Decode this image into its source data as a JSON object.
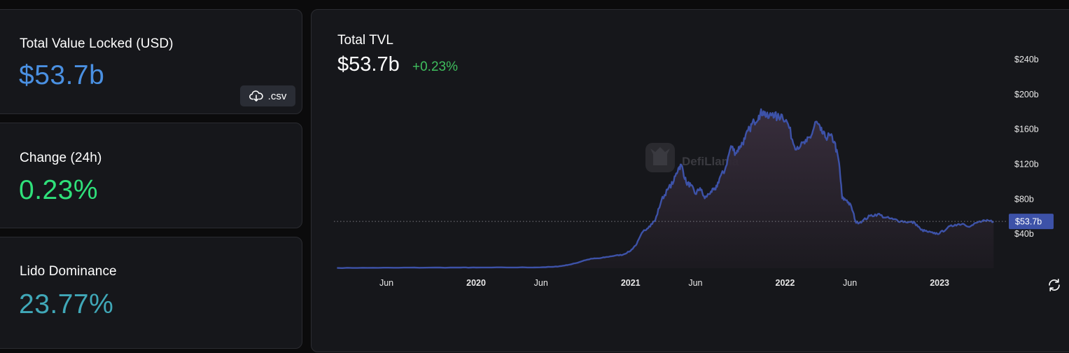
{
  "stats": {
    "tvl": {
      "label": "Total Value Locked (USD)",
      "value": "$53.7b",
      "value_color": "#4a90e2"
    },
    "change": {
      "label": "Change (24h)",
      "value": "0.23%",
      "value_color": "#2fe07a"
    },
    "dominance": {
      "label": "Lido Dominance",
      "value": "23.77%",
      "value_color": "#40a8b8"
    },
    "csv_button": {
      "label": ".csv",
      "icon": "cloud-download-icon"
    }
  },
  "chart": {
    "title": "Total TVL",
    "value": "$53.7b",
    "change": "+0.23%",
    "watermark": "DefiLlama",
    "current_price_label": "$53.7b",
    "refresh_icon": "refresh-icon",
    "colors": {
      "line": "#3d52a8",
      "area_top": "#3a2f3e",
      "price_tag": "#3d52a8",
      "up": "#3fbf5e"
    }
  },
  "chart_data": {
    "type": "area",
    "title": "Total TVL",
    "xlabel": "",
    "ylabel": "",
    "ylim": [
      0,
      260
    ],
    "y_ticks": [
      "$40b",
      "$80b",
      "$120b",
      "$160b",
      "$200b",
      "$240b"
    ],
    "x_ticks": [
      "Jun",
      "2020",
      "Jun",
      "2021",
      "Jun",
      "2022",
      "Jun",
      "2023"
    ],
    "current_value": 53.7,
    "series": [
      {
        "values": [
          [
            2019.1,
            0.3
          ],
          [
            2019.3,
            0.5
          ],
          [
            2019.5,
            0.6
          ],
          [
            2019.7,
            0.7
          ],
          [
            2019.9,
            0.8
          ],
          [
            2020.0,
            0.8
          ],
          [
            2020.2,
            0.9
          ],
          [
            2020.4,
            1.0
          ],
          [
            2020.5,
            1.6
          ],
          [
            2020.55,
            2.5
          ],
          [
            2020.6,
            4.0
          ],
          [
            2020.65,
            6.0
          ],
          [
            2020.7,
            9.0
          ],
          [
            2020.75,
            11.0
          ],
          [
            2020.8,
            11.5
          ],
          [
            2020.85,
            13.0
          ],
          [
            2020.9,
            14.5
          ],
          [
            2020.95,
            15.5
          ],
          [
            2021.0,
            20.0
          ],
          [
            2021.04,
            28.0
          ],
          [
            2021.08,
            42.0
          ],
          [
            2021.12,
            48.0
          ],
          [
            2021.16,
            55.0
          ],
          [
            2021.2,
            78.0
          ],
          [
            2021.24,
            90.0
          ],
          [
            2021.28,
            100.0
          ],
          [
            2021.31,
            115.0
          ],
          [
            2021.33,
            118.0
          ],
          [
            2021.36,
            98.0
          ],
          [
            2021.39,
            95.0
          ],
          [
            2021.42,
            85.0
          ],
          [
            2021.45,
            92.0
          ],
          [
            2021.48,
            80.0
          ],
          [
            2021.52,
            88.0
          ],
          [
            2021.55,
            90.0
          ],
          [
            2021.58,
            105.0
          ],
          [
            2021.61,
            112.0
          ],
          [
            2021.65,
            140.0
          ],
          [
            2021.68,
            132.0
          ],
          [
            2021.71,
            140.0
          ],
          [
            2021.74,
            148.0
          ],
          [
            2021.77,
            160.0
          ],
          [
            2021.8,
            168.0
          ],
          [
            2021.83,
            175.0
          ],
          [
            2021.86,
            180.0
          ],
          [
            2021.89,
            172.0
          ],
          [
            2021.92,
            178.0
          ],
          [
            2021.95,
            172.0
          ],
          [
            2021.98,
            176.0
          ],
          [
            2022.02,
            165.0
          ],
          [
            2022.06,
            140.0
          ],
          [
            2022.1,
            140.0
          ],
          [
            2022.14,
            145.0
          ],
          [
            2022.17,
            152.0
          ],
          [
            2022.2,
            168.0
          ],
          [
            2022.23,
            158.0
          ],
          [
            2022.26,
            150.0
          ],
          [
            2022.29,
            152.0
          ],
          [
            2022.32,
            145.0
          ],
          [
            2022.35,
            120.0
          ],
          [
            2022.37,
            80.0
          ],
          [
            2022.4,
            78.0
          ],
          [
            2022.43,
            70.0
          ],
          [
            2022.46,
            52.0
          ],
          [
            2022.5,
            54.0
          ],
          [
            2022.55,
            60.0
          ],
          [
            2022.6,
            62.0
          ],
          [
            2022.65,
            58.0
          ],
          [
            2022.7,
            56.0
          ],
          [
            2022.75,
            54.0
          ],
          [
            2022.8,
            53.0
          ],
          [
            2022.84,
            52.0
          ],
          [
            2022.88,
            44.0
          ],
          [
            2022.92,
            42.0
          ],
          [
            2022.96,
            40.0
          ],
          [
            2023.0,
            40.0
          ],
          [
            2023.05,
            46.0
          ],
          [
            2023.1,
            50.0
          ],
          [
            2023.15,
            51.0
          ],
          [
            2023.2,
            48.0
          ],
          [
            2023.25,
            53.0
          ],
          [
            2023.3,
            54.0
          ],
          [
            2023.35,
            53.7
          ]
        ]
      }
    ]
  }
}
